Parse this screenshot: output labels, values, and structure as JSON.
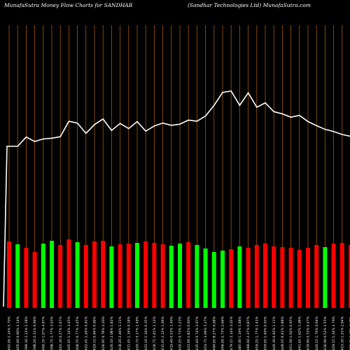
{
  "header": {
    "left_title": "MunafaSutra  Money Flow  Charts for SANDHAR",
    "right_title": "(Sandhar Technologies Ltd) MunafaSutra.com"
  },
  "colors": {
    "background": "#000000",
    "up_bar": "#00ff00",
    "down_bar": "#ff0000",
    "gridline": "#b8650a",
    "price_line": "#ffffff"
  },
  "chart_data": {
    "type": "bar",
    "title": "MunafaSutra  Money Flow  Charts for SANDHAR",
    "categories": [
      "402.00 1.14% 5.70%",
      "405.60 0.90% 1.14%",
      "399.30 2.13% 2.18%",
      "398.20 2.31% 0.96%",
      "400.35 1.07% 4.97%",
      "398.75 1.77% 3.03%",
      "402.30 0.27% 1.67%",
      "405.05 1.14% 3.45%",
      "408.55 0.77% 3.45%",
      "422.45 1.24% 0.91%",
      "429.15 0.94% 0.96%",
      "426.95 0.78% 2.20%",
      "420.10 2.08% 1.82%",
      "418.20 2.48% 1.31%",
      "411.45 1.16% 0.18%",
      "420.75 0.17% 1.49%",
      "422.10 1.16% 0.35%",
      "418.75 1.45% 1.12%",
      "415.05 2.12% 1.06%",
      "419.40 0.52% 1.40%",
      "420.25 0.73% 1.23%",
      "422.90 1.82% 0.60%",
      "435.40 0.74% 2.07%",
      "454.75 3.09% 5.27%",
      "494.65 8.27% 6.68%",
      "496.60 2.73% 2.66%",
      "479.15 2.14% 3.02%",
      "485.00 1.19% 1.68%",
      "468.60 2.37% 0.87%",
      "459.25 1.77% 1.41%",
      "459.65 1.40% 0.93%",
      "449.30 0.92% 1.11%",
      "448.05 0.41% 1.88%",
      "451.00 1.02% 0.65%",
      "441.65 1.62% 1.98%",
      "439.90 0.33% 0.47%",
      "446.15 1.76% 0.94%",
      "436.90 0.52% 1.55%",
      "429.15 1.34% 1.79%",
      "423.30 1.21% 2.94%",
      "431.35 1.47% 3.68%"
    ],
    "series": [
      {
        "price": [
          300,
          300,
          275,
          287,
          280,
          278,
          274,
          232,
          237,
          265,
          241,
          226,
          257,
          238,
          252,
          233,
          259,
          245,
          237,
          243,
          240,
          229,
          232,
          218,
          189,
          154,
          150,
          189,
          155,
          194,
          182,
          206,
          212,
          221,
          216,
          233,
          244,
          254,
          260,
          268,
          273
        ],
        "flow_height": [
          95,
          91,
          86,
          80,
          92,
          96,
          90,
          98,
          94,
          90,
          95,
          96,
          88,
          91,
          92,
          93,
          95,
          93,
          91,
          89,
          92,
          94,
          90,
          85,
          80,
          82,
          84,
          88,
          86,
          90,
          92,
          88,
          87,
          86,
          83,
          86,
          90,
          87,
          92,
          93,
          90
        ],
        "direction": [
          "down",
          "up",
          "down",
          "down",
          "up",
          "up",
          "down",
          "down",
          "up",
          "down",
          "down",
          "down",
          "up",
          "down",
          "down",
          "up",
          "down",
          "down",
          "down",
          "up",
          "up",
          "down",
          "up",
          "up",
          "up",
          "up",
          "down",
          "up",
          "down",
          "down",
          "down",
          "down",
          "down",
          "down",
          "down",
          "down",
          "down",
          "up",
          "down",
          "down",
          "down"
        ]
      }
    ]
  }
}
